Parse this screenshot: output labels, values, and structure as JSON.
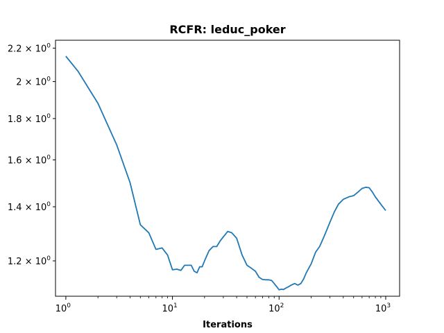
{
  "chart_data": {
    "type": "line",
    "title": "RCFR: leduc_poker",
    "xlabel": "Iterations",
    "ylabel": "",
    "xscale": "log",
    "yscale": "log",
    "xlim": [
      0.8,
      1350
    ],
    "ylim": [
      1.085,
      2.25
    ],
    "grid": false,
    "legend": "none",
    "line_color": "#1f77b4",
    "x_ticks": [
      {
        "value": 1,
        "base": "10",
        "exp": "0"
      },
      {
        "value": 10,
        "base": "10",
        "exp": "1"
      },
      {
        "value": 100,
        "base": "10",
        "exp": "2"
      },
      {
        "value": 1000,
        "base": "10",
        "exp": "3"
      }
    ],
    "y_ticks": [
      {
        "value": 1.2,
        "mant": "1.2",
        "exp": "0"
      },
      {
        "value": 1.4,
        "mant": "1.4",
        "exp": "0"
      },
      {
        "value": 1.6,
        "mant": "1.6",
        "exp": "0"
      },
      {
        "value": 1.8,
        "mant": "1.8",
        "exp": "0"
      },
      {
        "value": 2.0,
        "mant": "2",
        "exp": "0"
      },
      {
        "value": 2.2,
        "mant": "2.2",
        "exp": "0"
      }
    ],
    "series": [
      {
        "x": [
          1,
          1.3,
          2,
          3,
          4,
          5,
          6,
          7,
          8,
          9,
          10,
          11,
          12,
          13,
          14,
          15,
          16,
          17,
          18,
          19,
          20,
          22,
          24,
          26,
          28,
          30,
          33,
          36,
          40,
          45,
          50,
          55,
          60,
          65,
          70,
          75,
          80,
          85,
          90,
          95,
          100,
          105,
          110,
          115,
          120,
          130,
          140,
          150,
          160,
          170,
          180,
          200,
          220,
          240,
          260,
          280,
          300,
          330,
          360,
          400,
          450,
          500,
          550,
          600,
          650,
          700,
          750,
          800,
          900,
          1000
        ],
        "y": [
          2.15,
          2.06,
          1.88,
          1.67,
          1.5,
          1.33,
          1.3,
          1.24,
          1.245,
          1.22,
          1.17,
          1.172,
          1.168,
          1.185,
          1.185,
          1.185,
          1.165,
          1.16,
          1.18,
          1.18,
          1.2,
          1.235,
          1.25,
          1.25,
          1.27,
          1.285,
          1.305,
          1.3,
          1.28,
          1.22,
          1.185,
          1.175,
          1.165,
          1.145,
          1.138,
          1.137,
          1.137,
          1.135,
          1.125,
          1.115,
          1.105,
          1.107,
          1.106,
          1.11,
          1.113,
          1.12,
          1.125,
          1.12,
          1.125,
          1.14,
          1.16,
          1.19,
          1.23,
          1.25,
          1.28,
          1.31,
          1.34,
          1.38,
          1.41,
          1.43,
          1.44,
          1.445,
          1.46,
          1.475,
          1.48,
          1.478,
          1.46,
          1.44,
          1.41,
          1.385
        ]
      }
    ]
  }
}
